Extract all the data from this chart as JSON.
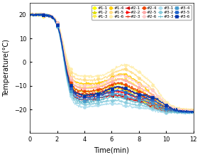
{
  "title": "",
  "xlabel": "Time(min)",
  "ylabel": "Temperature(°C)",
  "xlim": [
    0,
    12
  ],
  "ylim": [
    -30,
    25
  ],
  "yticks": [
    -20,
    -10,
    0,
    10,
    20
  ],
  "xticks": [
    0,
    2,
    4,
    6,
    8,
    10,
    12
  ],
  "series": [
    {
      "name": "#1-1",
      "row": 1,
      "col": 1,
      "color": "#ffff00",
      "marker": "o",
      "mfc": "#ffff00"
    },
    {
      "name": "#1-2",
      "row": 1,
      "col": 2,
      "color": "#dddd00",
      "marker": "^",
      "mfc": "#dddd00"
    },
    {
      "name": "#1-3",
      "row": 1,
      "col": 3,
      "color": "#ffee44",
      "marker": "v",
      "mfc": "#ffee44"
    },
    {
      "name": "#1-4",
      "row": 1,
      "col": 4,
      "color": "#ffcc00",
      "marker": "o",
      "mfc": "#ffcc00"
    },
    {
      "name": "#1-5",
      "row": 1,
      "col": 5,
      "color": "#ffdd88",
      "marker": "o",
      "mfc": "#ffdd88"
    },
    {
      "name": "#1-6",
      "row": 1,
      "col": 6,
      "color": "#ffeeaa",
      "marker": "o",
      "mfc": "#ffeeaa"
    },
    {
      "name": "#2-1",
      "row": 2,
      "col": 1,
      "color": "#cc0000",
      "marker": "<",
      "mfc": "#cc0000"
    },
    {
      "name": "#2-2",
      "row": 2,
      "col": 2,
      "color": "#ff0000",
      "marker": ">",
      "mfc": "#ff0000"
    },
    {
      "name": "#2-3",
      "row": 2,
      "col": 3,
      "color": "#dd2200",
      "marker": "+",
      "mfc": "#dd2200"
    },
    {
      "name": "#2-4",
      "row": 2,
      "col": 4,
      "color": "#ee4400",
      "marker": "o",
      "mfc": "#ee4400"
    },
    {
      "name": "#2-5",
      "row": 2,
      "col": 5,
      "color": "#ffaaaa",
      "marker": "o",
      "mfc": "#ffaaaa"
    },
    {
      "name": "#2-6",
      "row": 2,
      "col": 6,
      "color": "#ffcccc",
      "marker": "o",
      "mfc": "#ffcccc"
    },
    {
      "name": "#3-1",
      "row": 3,
      "col": 1,
      "color": "#aaddee",
      "marker": "o",
      "mfc": "#aaddee"
    },
    {
      "name": "#3-2",
      "row": 3,
      "col": 2,
      "color": "#88ccdd",
      "marker": "o",
      "mfc": "#88ccdd"
    },
    {
      "name": "#3-3",
      "row": 3,
      "col": 3,
      "color": "#66bbcc",
      "marker": "+",
      "mfc": "#66bbcc"
    },
    {
      "name": "#3-4",
      "row": 3,
      "col": 4,
      "color": "#4499cc",
      "marker": "s",
      "mfc": "#4499cc"
    },
    {
      "name": "#3-5",
      "row": 3,
      "col": 5,
      "color": "#2266cc",
      "marker": "s",
      "mfc": "#2266cc"
    },
    {
      "name": "#3-6",
      "row": 3,
      "col": 6,
      "color": "#0033aa",
      "marker": "s",
      "mfc": "#0033aa"
    }
  ],
  "background_color": "#ffffff",
  "legend_fontsize": 4.2,
  "axis_fontsize": 7,
  "tick_fontsize": 6
}
